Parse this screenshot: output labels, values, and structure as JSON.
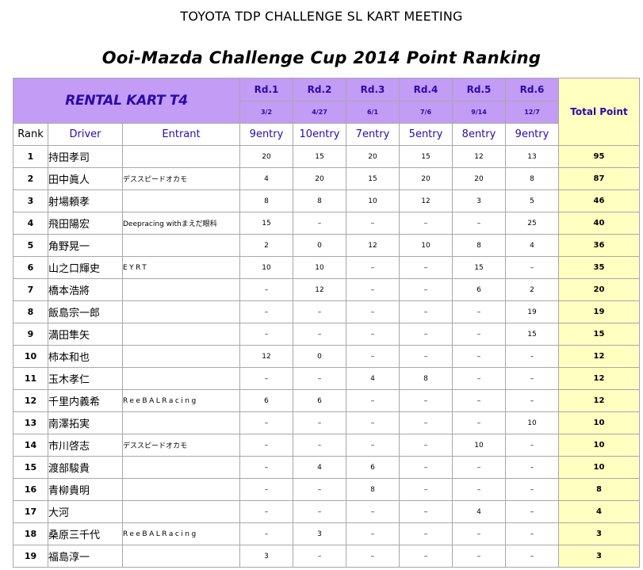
{
  "header": {
    "meeting": "TOYOTA TDP CHALLENGE SL KART MEETING",
    "cup": "Ooi-Mazda Challenge Cup 2014 Point Ranking"
  },
  "table": {
    "class_name": "RENTAL KART T4",
    "total_label": "Total Point",
    "col_rank": "Rank",
    "col_driver": "Driver",
    "col_entrant": "Entrant",
    "rounds": [
      {
        "name": "Rd.1",
        "date": "3/2",
        "entry": "9entry"
      },
      {
        "name": "Rd.2",
        "date": "4/27",
        "entry": "10entry"
      },
      {
        "name": "Rd.3",
        "date": "6/1",
        "entry": "7entry"
      },
      {
        "name": "Rd.4",
        "date": "7/6",
        "entry": "5entry"
      },
      {
        "name": "Rd.5",
        "date": "9/14",
        "entry": "8entry"
      },
      {
        "name": "Rd.6",
        "date": "12/7",
        "entry": "9entry"
      }
    ],
    "rows": [
      {
        "rank": "1",
        "driver": "持田孝司",
        "entrant": "",
        "points": [
          "20",
          "15",
          "20",
          "15",
          "12",
          "13"
        ],
        "total": "95"
      },
      {
        "rank": "2",
        "driver": "田中眞人",
        "entrant": "デススピードオカモ",
        "points": [
          "4",
          "20",
          "15",
          "20",
          "20",
          "8"
        ],
        "total": "87"
      },
      {
        "rank": "3",
        "driver": "射場頼孝",
        "entrant": "",
        "points": [
          "8",
          "8",
          "10",
          "12",
          "3",
          "5"
        ],
        "total": "46"
      },
      {
        "rank": "4",
        "driver": "飛田陽宏",
        "entrant": "Deepracing withまえだ眼科",
        "points": [
          "15",
          "–",
          "–",
          "–",
          "–",
          "25"
        ],
        "total": "40"
      },
      {
        "rank": "5",
        "driver": "角野晃一",
        "entrant": "",
        "points": [
          "2",
          "0",
          "12",
          "10",
          "8",
          "4"
        ],
        "total": "36"
      },
      {
        "rank": "6",
        "driver": "山之口輝史",
        "entrant": "EYRT",
        "points": [
          "10",
          "10",
          "–",
          "–",
          "15",
          "–"
        ],
        "total": "35"
      },
      {
        "rank": "7",
        "driver": "橋本浩將",
        "entrant": "",
        "points": [
          "–",
          "12",
          "–",
          "–",
          "6",
          "2"
        ],
        "total": "20"
      },
      {
        "rank": "8",
        "driver": "飯島宗一郎",
        "entrant": "",
        "points": [
          "–",
          "–",
          "–",
          "–",
          "–",
          "19"
        ],
        "total": "19"
      },
      {
        "rank": "9",
        "driver": "満田隼矢",
        "entrant": "",
        "points": [
          "–",
          "–",
          "–",
          "–",
          "–",
          "15"
        ],
        "total": "15"
      },
      {
        "rank": "10",
        "driver": "柿本和也",
        "entrant": "",
        "points": [
          "12",
          "0",
          "–",
          "–",
          "–",
          "–"
        ],
        "total": "12"
      },
      {
        "rank": "11",
        "driver": "玉木孝仁",
        "entrant": "",
        "points": [
          "–",
          "–",
          "4",
          "8",
          "–",
          "–"
        ],
        "total": "12"
      },
      {
        "rank": "12",
        "driver": "千里内義希",
        "entrant": "ReeBALRacing",
        "points": [
          "6",
          "6",
          "–",
          "–",
          "–",
          "–"
        ],
        "total": "12"
      },
      {
        "rank": "13",
        "driver": "南澤拓実",
        "entrant": "",
        "points": [
          "–",
          "–",
          "–",
          "–",
          "–",
          "10"
        ],
        "total": "10"
      },
      {
        "rank": "14",
        "driver": "市川啓志",
        "entrant": "デススピードオカモ",
        "points": [
          "–",
          "–",
          "–",
          "–",
          "10",
          "–"
        ],
        "total": "10"
      },
      {
        "rank": "15",
        "driver": "渡部駿貴",
        "entrant": "",
        "points": [
          "–",
          "4",
          "6",
          "–",
          "–",
          "–"
        ],
        "total": "10"
      },
      {
        "rank": "16",
        "driver": "青柳貴明",
        "entrant": "",
        "points": [
          "–",
          "–",
          "8",
          "–",
          "–",
          "–"
        ],
        "total": "8"
      },
      {
        "rank": "17",
        "driver": "大河",
        "entrant": "",
        "points": [
          "–",
          "–",
          "–",
          "–",
          "4",
          "–"
        ],
        "total": "4"
      },
      {
        "rank": "18",
        "driver": "桑原三千代",
        "entrant": "ReeBALRacing",
        "points": [
          "–",
          "3",
          "–",
          "–",
          "–",
          "–"
        ],
        "total": "3"
      },
      {
        "rank": "19",
        "driver": "福島淳一",
        "entrant": "",
        "points": [
          "3",
          "–",
          "–",
          "–",
          "–",
          "–"
        ],
        "total": "3"
      }
    ]
  }
}
